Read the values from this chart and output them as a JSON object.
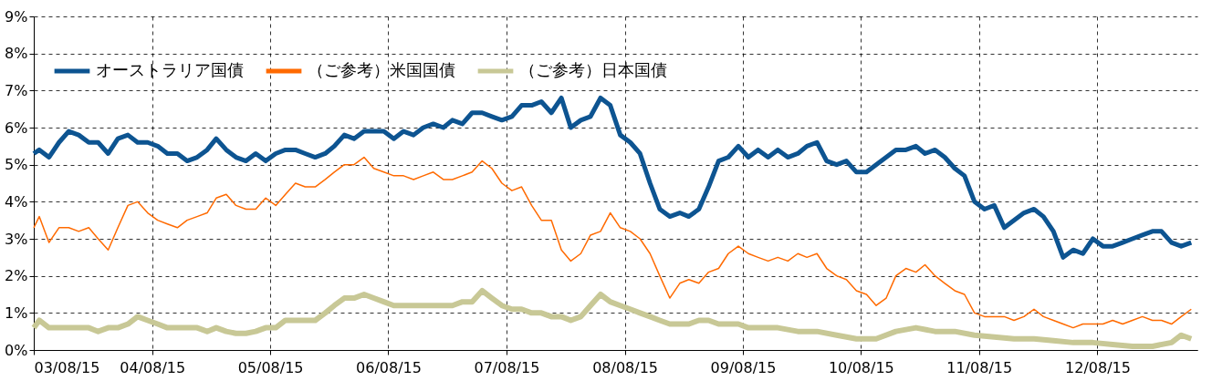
{
  "chart_data": {
    "type": "line",
    "xlim": [
      "2003-08-15",
      "2013-06-20"
    ],
    "xticks": [
      {
        "value": "2003-08-15",
        "label": "03/08/15"
      },
      {
        "value": "2004-08-15",
        "label": "04/08/15"
      },
      {
        "value": "2005-08-15",
        "label": "05/08/15"
      },
      {
        "value": "2006-08-15",
        "label": "06/08/15"
      },
      {
        "value": "2007-08-15",
        "label": "07/08/15"
      },
      {
        "value": "2008-08-15",
        "label": "08/08/15"
      },
      {
        "value": "2009-08-15",
        "label": "09/08/15"
      },
      {
        "value": "2010-08-15",
        "label": "10/08/15"
      },
      {
        "value": "2011-08-15",
        "label": "11/08/15"
      },
      {
        "value": "2012-08-15",
        "label": "12/08/15"
      }
    ],
    "ylim": [
      0,
      9
    ],
    "yticks": [
      {
        "value": 0,
        "label": "0%"
      },
      {
        "value": 1,
        "label": "1%"
      },
      {
        "value": 2,
        "label": "2%"
      },
      {
        "value": 3,
        "label": "3%"
      },
      {
        "value": 4,
        "label": "4%"
      },
      {
        "value": 5,
        "label": "5%"
      },
      {
        "value": 6,
        "label": "6%"
      },
      {
        "value": 7,
        "label": "7%"
      },
      {
        "value": 8,
        "label": "8%"
      },
      {
        "value": 9,
        "label": "9%"
      }
    ],
    "grid": true,
    "legend": "top left",
    "series": [
      {
        "name": "オーストラリア国債",
        "color": "#0d5491",
        "x": [
          "2003-08-15",
          "2003-09",
          "2003-10",
          "2003-11",
          "2003-12",
          "2004-01",
          "2004-02",
          "2004-03",
          "2004-04",
          "2004-05",
          "2004-06",
          "2004-07",
          "2004-08",
          "2004-09",
          "2004-10",
          "2004-11",
          "2004-12",
          "2005-01",
          "2005-02",
          "2005-03",
          "2005-04",
          "2005-05",
          "2005-06",
          "2005-07",
          "2005-08",
          "2005-09",
          "2005-10",
          "2005-11",
          "2005-12",
          "2006-01",
          "2006-02",
          "2006-03",
          "2006-04",
          "2006-05",
          "2006-06",
          "2006-07",
          "2006-08",
          "2006-09",
          "2006-10",
          "2006-11",
          "2006-12",
          "2007-01",
          "2007-02",
          "2007-03",
          "2007-04",
          "2007-05",
          "2007-06",
          "2007-07",
          "2007-08",
          "2007-09",
          "2007-10",
          "2007-11",
          "2007-12",
          "2008-01",
          "2008-02",
          "2008-03",
          "2008-04",
          "2008-05",
          "2008-06",
          "2008-07",
          "2008-08",
          "2008-09",
          "2008-10",
          "2008-11",
          "2008-12",
          "2009-01",
          "2009-02",
          "2009-03",
          "2009-04",
          "2009-05",
          "2009-06",
          "2009-07",
          "2009-08",
          "2009-09",
          "2009-10",
          "2009-11",
          "2009-12",
          "2010-01",
          "2010-02",
          "2010-03",
          "2010-04",
          "2010-05",
          "2010-06",
          "2010-07",
          "2010-08",
          "2010-09",
          "2010-10",
          "2010-11",
          "2010-12",
          "2011-01",
          "2011-02",
          "2011-03",
          "2011-04",
          "2011-05",
          "2011-06",
          "2011-07",
          "2011-08",
          "2011-09",
          "2011-10",
          "2011-11",
          "2011-12",
          "2012-01",
          "2012-02",
          "2012-03",
          "2012-04",
          "2012-05",
          "2012-06",
          "2012-07",
          "2012-08",
          "2012-09",
          "2012-10",
          "2012-11",
          "2012-12",
          "2013-01",
          "2013-02",
          "2013-03",
          "2013-04",
          "2013-05",
          "2013-06"
        ],
        "values": [
          5.3,
          5.4,
          5.2,
          5.6,
          5.9,
          5.8,
          5.6,
          5.6,
          5.3,
          5.7,
          5.8,
          5.6,
          5.6,
          5.5,
          5.3,
          5.3,
          5.1,
          5.2,
          5.4,
          5.7,
          5.4,
          5.2,
          5.1,
          5.3,
          5.1,
          5.3,
          5.4,
          5.4,
          5.3,
          5.2,
          5.3,
          5.5,
          5.8,
          5.7,
          5.9,
          5.9,
          5.9,
          5.7,
          5.9,
          5.8,
          6.0,
          6.1,
          6.0,
          6.2,
          6.1,
          6.4,
          6.4,
          6.3,
          6.2,
          6.3,
          6.6,
          6.6,
          6.7,
          6.4,
          6.8,
          6.0,
          6.2,
          6.3,
          6.8,
          6.6,
          5.8,
          5.6,
          5.3,
          4.5,
          3.8,
          3.6,
          3.7,
          3.6,
          3.8,
          4.4,
          5.1,
          5.2,
          5.5,
          5.2,
          5.4,
          5.2,
          5.4,
          5.2,
          5.3,
          5.5,
          5.6,
          5.1,
          5.0,
          5.1,
          4.8,
          4.8,
          5.0,
          5.2,
          5.4,
          5.4,
          5.5,
          5.3,
          5.4,
          5.2,
          4.9,
          4.7,
          4.0,
          3.8,
          3.9,
          3.3,
          3.5,
          3.7,
          3.8,
          3.6,
          3.2,
          2.5,
          2.7,
          2.6,
          3.0,
          2.8,
          2.8,
          2.9,
          3.0,
          3.1,
          3.2,
          3.2,
          2.9,
          2.8,
          2.9
        ]
      },
      {
        "name": "（ご参考）米国国債",
        "color": "#ff6a00",
        "x": [
          "2003-08-15",
          "2003-09",
          "2003-10",
          "2003-11",
          "2003-12",
          "2004-01",
          "2004-02",
          "2004-03",
          "2004-04",
          "2004-05",
          "2004-06",
          "2004-07",
          "2004-08",
          "2004-09",
          "2004-10",
          "2004-11",
          "2004-12",
          "2005-01",
          "2005-02",
          "2005-03",
          "2005-04",
          "2005-05",
          "2005-06",
          "2005-07",
          "2005-08",
          "2005-09",
          "2005-10",
          "2005-11",
          "2005-12",
          "2006-01",
          "2006-02",
          "2006-03",
          "2006-04",
          "2006-05",
          "2006-06",
          "2006-07",
          "2006-08",
          "2006-09",
          "2006-10",
          "2006-11",
          "2006-12",
          "2007-01",
          "2007-02",
          "2007-03",
          "2007-04",
          "2007-05",
          "2007-06",
          "2007-07",
          "2007-08",
          "2007-09",
          "2007-10",
          "2007-11",
          "2007-12",
          "2008-01",
          "2008-02",
          "2008-03",
          "2008-04",
          "2008-05",
          "2008-06",
          "2008-07",
          "2008-08",
          "2008-09",
          "2008-10",
          "2008-11",
          "2008-12",
          "2009-01",
          "2009-02",
          "2009-03",
          "2009-04",
          "2009-05",
          "2009-06",
          "2009-07",
          "2009-08",
          "2009-09",
          "2009-10",
          "2009-11",
          "2009-12",
          "2010-01",
          "2010-02",
          "2010-03",
          "2010-04",
          "2010-05",
          "2010-06",
          "2010-07",
          "2010-08",
          "2010-09",
          "2010-10",
          "2010-11",
          "2010-12",
          "2011-01",
          "2011-02",
          "2011-03",
          "2011-04",
          "2011-05",
          "2011-06",
          "2011-07",
          "2011-08",
          "2011-09",
          "2011-10",
          "2011-11",
          "2011-12",
          "2012-01",
          "2012-02",
          "2012-03",
          "2012-04",
          "2012-05",
          "2012-06",
          "2012-07",
          "2012-08",
          "2012-09",
          "2012-10",
          "2012-11",
          "2012-12",
          "2013-01",
          "2013-02",
          "2013-03",
          "2013-04",
          "2013-05",
          "2013-06"
        ],
        "values": [
          3.3,
          3.6,
          2.9,
          3.3,
          3.3,
          3.2,
          3.3,
          3.0,
          2.7,
          3.3,
          3.9,
          4.0,
          3.7,
          3.5,
          3.4,
          3.3,
          3.5,
          3.6,
          3.7,
          4.1,
          4.2,
          3.9,
          3.8,
          3.8,
          4.1,
          3.9,
          4.2,
          4.5,
          4.4,
          4.4,
          4.6,
          4.8,
          5.0,
          5.0,
          5.2,
          4.9,
          4.8,
          4.7,
          4.7,
          4.6,
          4.7,
          4.8,
          4.6,
          4.6,
          4.7,
          4.8,
          5.1,
          4.9,
          4.5,
          4.3,
          4.4,
          3.9,
          3.5,
          3.5,
          2.7,
          2.4,
          2.6,
          3.1,
          3.2,
          3.7,
          3.3,
          3.2,
          3.0,
          2.6,
          2.0,
          1.4,
          1.8,
          1.9,
          1.8,
          2.1,
          2.2,
          2.6,
          2.8,
          2.6,
          2.5,
          2.4,
          2.5,
          2.4,
          2.6,
          2.5,
          2.6,
          2.2,
          2.0,
          1.9,
          1.6,
          1.5,
          1.2,
          1.4,
          2.0,
          2.2,
          2.1,
          2.3,
          2.0,
          1.8,
          1.6,
          1.5,
          1.0,
          0.9,
          0.9,
          0.9,
          0.8,
          0.9,
          1.1,
          0.9,
          0.8,
          0.7,
          0.6,
          0.7,
          0.7,
          0.7,
          0.8,
          0.7,
          0.8,
          0.9,
          0.8,
          0.8,
          0.7,
          0.9,
          1.1
        ]
      },
      {
        "name": "（ご参考）日本国債",
        "color": "#c8c896",
        "x": [
          "2003-08-15",
          "2003-09",
          "2003-10",
          "2003-11",
          "2003-12",
          "2004-01",
          "2004-02",
          "2004-03",
          "2004-04",
          "2004-05",
          "2004-06",
          "2004-07",
          "2004-08",
          "2004-09",
          "2004-10",
          "2004-11",
          "2004-12",
          "2005-01",
          "2005-02",
          "2005-03",
          "2005-04",
          "2005-05",
          "2005-06",
          "2005-07",
          "2005-08",
          "2005-09",
          "2005-10",
          "2005-11",
          "2005-12",
          "2006-01",
          "2006-02",
          "2006-03",
          "2006-04",
          "2006-05",
          "2006-06",
          "2006-07",
          "2006-08",
          "2006-09",
          "2006-10",
          "2006-11",
          "2006-12",
          "2007-01",
          "2007-02",
          "2007-03",
          "2007-04",
          "2007-05",
          "2007-06",
          "2007-07",
          "2007-08",
          "2007-09",
          "2007-10",
          "2007-11",
          "2007-12",
          "2008-01",
          "2008-02",
          "2008-03",
          "2008-04",
          "2008-05",
          "2008-06",
          "2008-07",
          "2008-08",
          "2008-09",
          "2008-10",
          "2008-11",
          "2008-12",
          "2009-01",
          "2009-02",
          "2009-03",
          "2009-04",
          "2009-05",
          "2009-06",
          "2009-07",
          "2009-08",
          "2009-09",
          "2009-10",
          "2009-12",
          "2010-02",
          "2010-04",
          "2010-06",
          "2010-08",
          "2010-10",
          "2010-12",
          "2011-02",
          "2011-04",
          "2011-06",
          "2011-08",
          "2011-10",
          "2011-12",
          "2012-02",
          "2012-04",
          "2012-06",
          "2012-08",
          "2012-10",
          "2012-12",
          "2013-02",
          "2013-04",
          "2013-05",
          "2013-06"
        ],
        "values": [
          0.6,
          0.8,
          0.6,
          0.6,
          0.6,
          0.6,
          0.6,
          0.5,
          0.6,
          0.6,
          0.7,
          0.9,
          0.8,
          0.7,
          0.6,
          0.6,
          0.6,
          0.6,
          0.5,
          0.6,
          0.5,
          0.45,
          0.45,
          0.5,
          0.6,
          0.6,
          0.8,
          0.8,
          0.8,
          0.8,
          1.0,
          1.2,
          1.4,
          1.4,
          1.5,
          1.4,
          1.3,
          1.2,
          1.2,
          1.2,
          1.2,
          1.2,
          1.2,
          1.2,
          1.3,
          1.3,
          1.6,
          1.4,
          1.2,
          1.1,
          1.1,
          1.0,
          1.0,
          0.9,
          0.9,
          0.8,
          0.9,
          1.2,
          1.5,
          1.3,
          1.2,
          1.1,
          1.0,
          0.9,
          0.8,
          0.7,
          0.7,
          0.7,
          0.8,
          0.8,
          0.7,
          0.7,
          0.7,
          0.6,
          0.6,
          0.6,
          0.5,
          0.5,
          0.4,
          0.3,
          0.3,
          0.5,
          0.6,
          0.5,
          0.5,
          0.4,
          0.35,
          0.3,
          0.3,
          0.25,
          0.2,
          0.2,
          0.15,
          0.1,
          0.1,
          0.2,
          0.4,
          0.3
        ]
      }
    ]
  }
}
